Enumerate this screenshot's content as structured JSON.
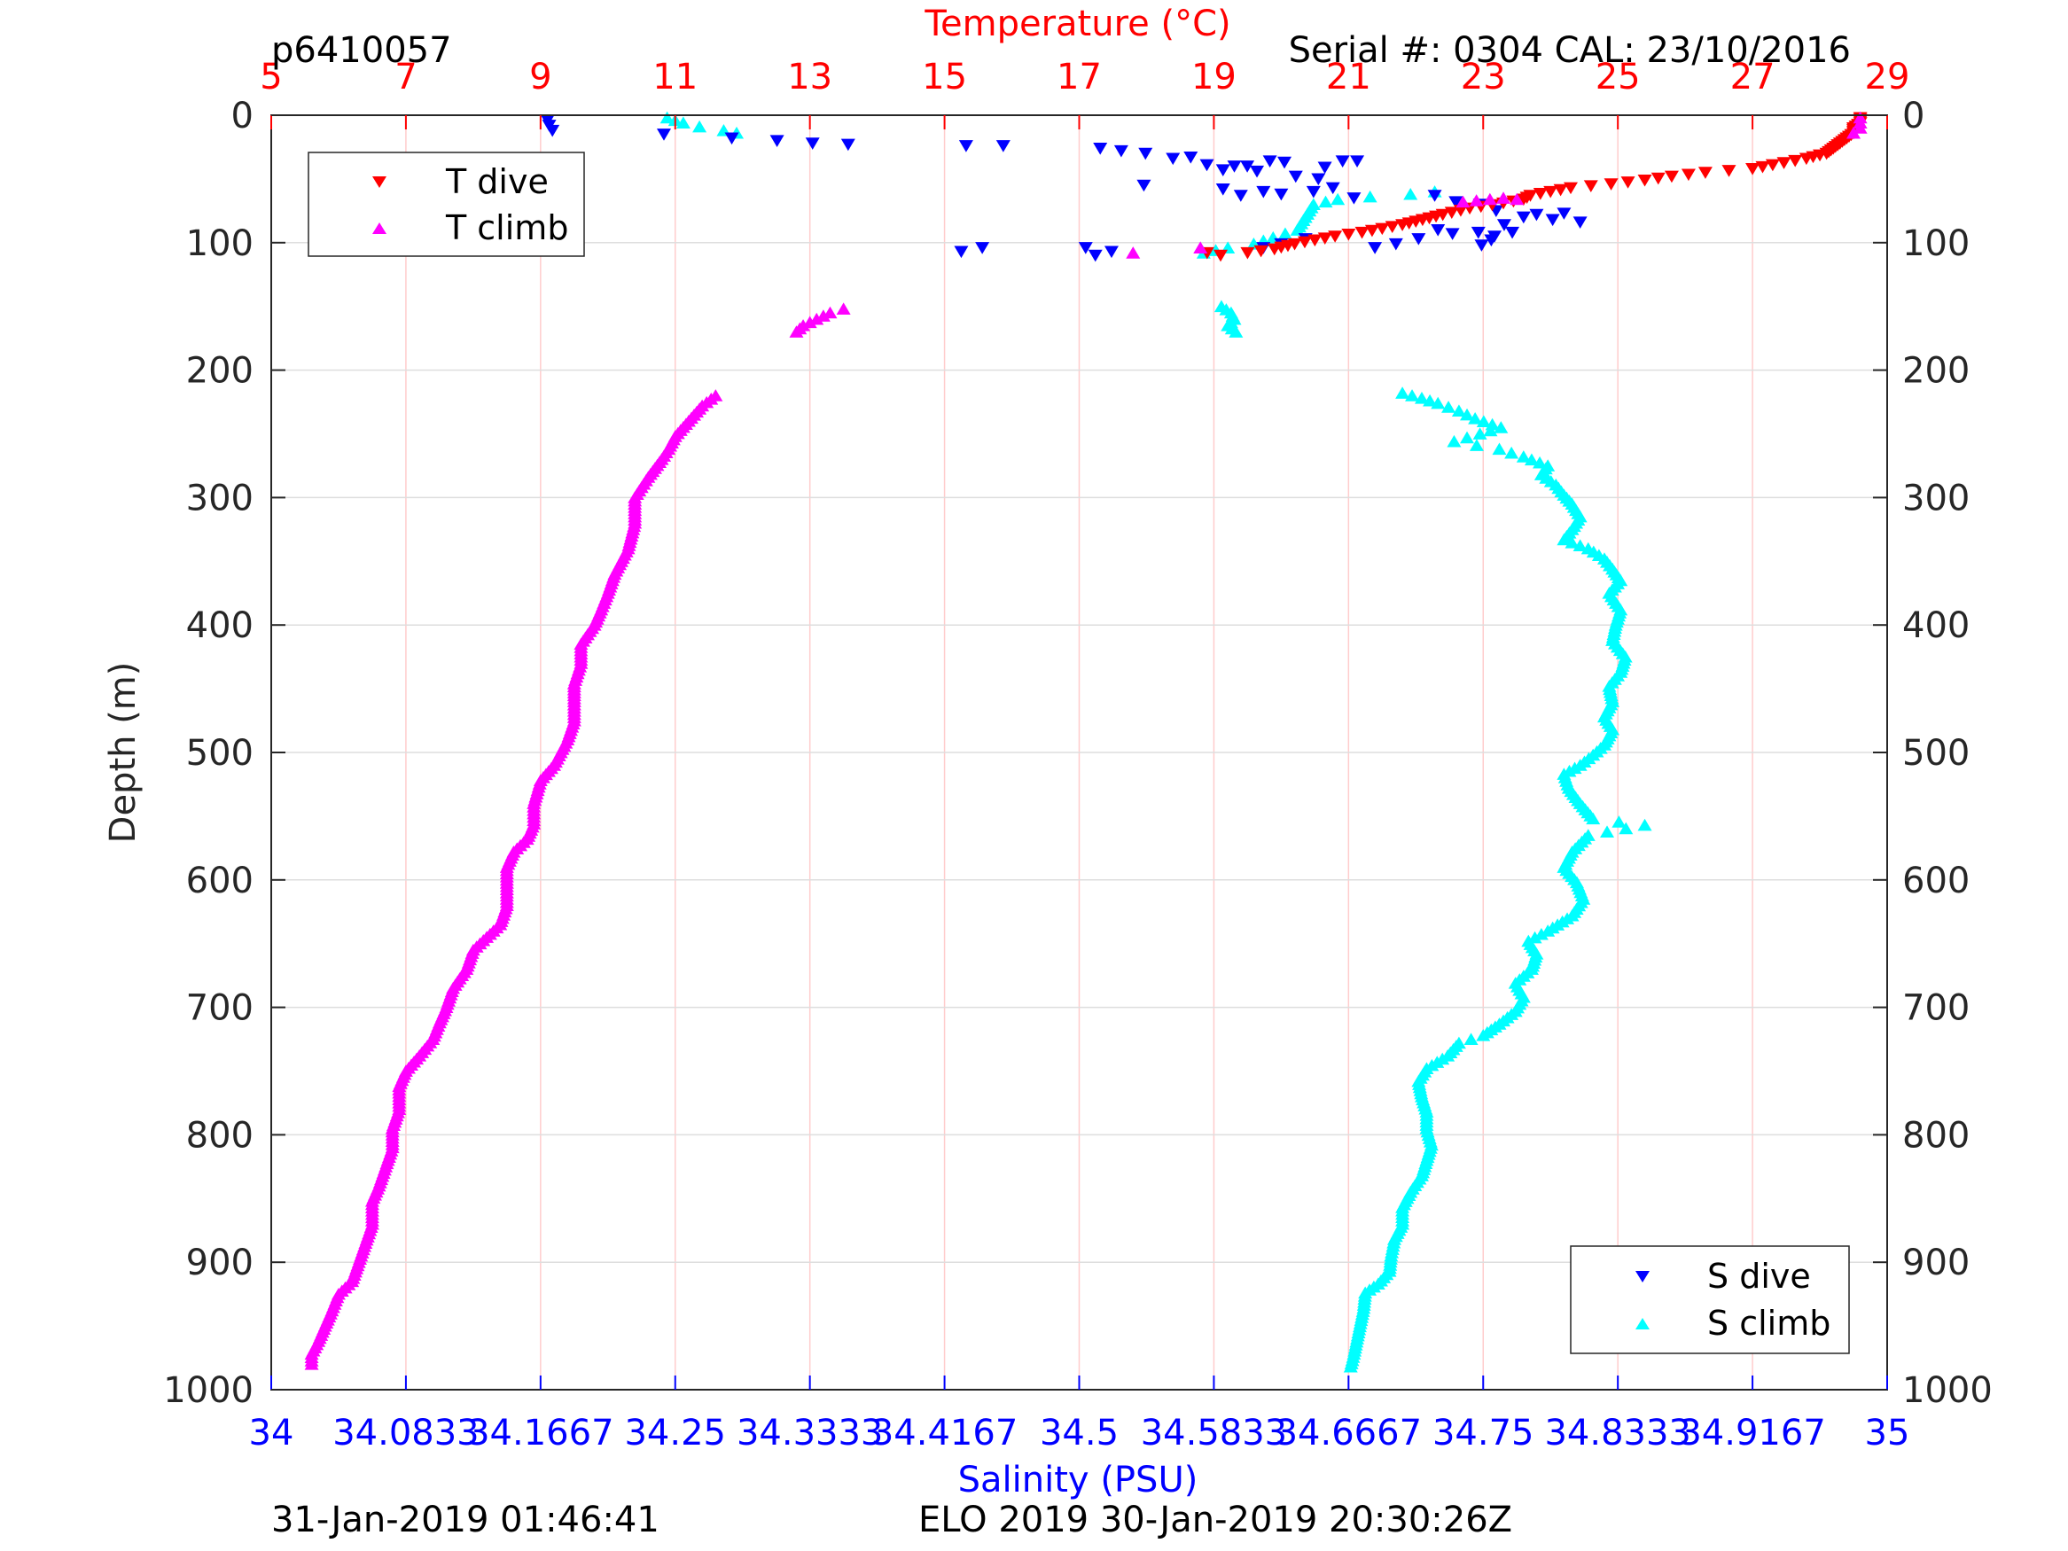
{
  "chart_data": {
    "type": "scatter",
    "profile_id": "p6410057",
    "serial_text": "Serial #: 0304  CAL: 23/10/2016",
    "footer_left": "31-Jan-2019 01:46:41",
    "footer_right": "ELO 2019 30-Jan-2019 20:30:26Z",
    "ylabel": "Depth (m)",
    "temp_axis_label": "Temperature (°C)",
    "sal_axis_label": "Salinity (PSU)",
    "ylim": [
      0,
      1000
    ],
    "y_reversed": true,
    "y_ticks": [
      "0",
      "100",
      "200",
      "300",
      "400",
      "500",
      "600",
      "700",
      "800",
      "900",
      "1000"
    ],
    "temp_lim": [
      5,
      29
    ],
    "temp_ticks": [
      "5",
      "7",
      "9",
      "11",
      "13",
      "15",
      "17",
      "19",
      "21",
      "23",
      "25",
      "27",
      "29"
    ],
    "sal_lim": [
      34,
      35
    ],
    "sal_ticks": [
      "34",
      "34.0833",
      "34.1667",
      "34.25",
      "34.3333",
      "34.4167",
      "34.5",
      "34.5833",
      "34.6667",
      "34.75",
      "34.8333",
      "34.9167",
      "35"
    ],
    "grid": true,
    "colors": {
      "temp_axis": "#ff0000",
      "sal_axis": "#0000ff",
      "t_dive": "#ff0000",
      "t_climb": "#ff00ff",
      "s_dive": "#0000ff",
      "s_climb": "#00ffff",
      "vgrid": "#ffcccc",
      "hgrid": "#dedede"
    },
    "legend_temp": {
      "placement": "top-left",
      "entries": [
        "T dive",
        "T climb"
      ]
    },
    "legend_sal": {
      "placement": "bottom-right",
      "entries": [
        "S dive",
        "S climb"
      ]
    },
    "series": [
      {
        "name": "T dive",
        "axis": "temperature",
        "marker": "triangle-down",
        "points": [
          [
            28.6,
            2
          ],
          [
            28.6,
            6
          ],
          [
            28.5,
            10
          ],
          [
            28.5,
            14
          ],
          [
            28.4,
            18
          ],
          [
            28.3,
            22
          ],
          [
            28.2,
            26
          ],
          [
            28.1,
            30
          ],
          [
            27.8,
            34
          ],
          [
            27.3,
            39
          ],
          [
            27.0,
            42
          ],
          [
            26.3,
            45
          ],
          [
            25.8,
            48
          ],
          [
            25.4,
            51
          ],
          [
            24.9,
            54
          ],
          [
            24.3,
            57
          ],
          [
            24.0,
            60
          ],
          [
            23.7,
            63
          ],
          [
            23.6,
            66
          ],
          [
            23.3,
            69
          ],
          [
            22.8,
            73
          ],
          [
            22.4,
            78
          ],
          [
            22.1,
            82
          ],
          [
            21.8,
            86
          ],
          [
            21.2,
            92
          ],
          [
            20.8,
            95
          ],
          [
            20.5,
            98
          ],
          [
            20.2,
            101
          ],
          [
            19.9,
            105
          ],
          [
            19.5,
            108
          ],
          [
            19.1,
            110
          ],
          [
            18.9,
            108
          ]
        ]
      },
      {
        "name": "T climb",
        "axis": "temperature",
        "marker": "triangle-up",
        "points": [
          [
            28.6,
            2
          ],
          [
            28.6,
            6
          ],
          [
            28.6,
            10
          ],
          [
            28.5,
            14
          ],
          [
            22.7,
            68
          ],
          [
            22.9,
            67
          ],
          [
            23.1,
            66
          ],
          [
            23.3,
            65
          ],
          [
            23.5,
            66
          ],
          [
            18.8,
            104
          ],
          [
            17.8,
            108
          ]
        ]
      },
      {
        "name": "S dive",
        "axis": "salinity",
        "marker": "triangle-down",
        "points": [
          [
            34.171,
            4
          ],
          [
            34.172,
            8
          ],
          [
            34.174,
            12
          ],
          [
            34.243,
            15
          ],
          [
            34.285,
            18
          ],
          [
            34.313,
            20
          ],
          [
            34.335,
            22
          ],
          [
            34.357,
            23
          ],
          [
            34.43,
            24
          ],
          [
            34.453,
            24
          ],
          [
            34.427,
            107
          ],
          [
            34.44,
            104
          ],
          [
            34.504,
            104
          ],
          [
            34.52,
            107
          ],
          [
            34.51,
            110
          ],
          [
            34.513,
            26
          ],
          [
            34.526,
            28
          ],
          [
            34.541,
            30
          ],
          [
            34.558,
            34
          ],
          [
            34.569,
            33
          ],
          [
            34.579,
            39
          ],
          [
            34.589,
            43
          ],
          [
            34.596,
            40
          ],
          [
            34.604,
            40
          ],
          [
            34.61,
            44
          ],
          [
            34.618,
            36
          ],
          [
            34.627,
            37
          ],
          [
            34.634,
            48
          ],
          [
            34.648,
            50
          ],
          [
            34.652,
            41
          ],
          [
            34.663,
            36
          ],
          [
            34.672,
            36
          ],
          [
            34.54,
            55
          ],
          [
            34.589,
            58
          ],
          [
            34.6,
            63
          ],
          [
            34.614,
            60
          ],
          [
            34.625,
            62
          ],
          [
            34.645,
            60
          ],
          [
            34.657,
            57
          ],
          [
            34.67,
            65
          ],
          [
            34.72,
            63
          ],
          [
            34.733,
            68
          ],
          [
            34.748,
            70
          ],
          [
            34.758,
            75
          ],
          [
            34.763,
            86
          ],
          [
            34.768,
            92
          ],
          [
            34.775,
            80
          ],
          [
            34.783,
            78
          ],
          [
            34.793,
            82
          ],
          [
            34.8,
            77
          ],
          [
            34.81,
            84
          ],
          [
            34.757,
            95
          ],
          [
            34.747,
            92
          ],
          [
            34.731,
            93
          ],
          [
            34.722,
            90
          ],
          [
            34.71,
            97
          ],
          [
            34.696,
            101
          ],
          [
            34.683,
            104
          ],
          [
            34.64,
            97
          ],
          [
            34.625,
            101
          ],
          [
            34.614,
            104
          ],
          [
            34.749,
            102
          ],
          [
            34.755,
            98
          ]
        ]
      },
      {
        "name": "S climb",
        "axis": "salinity",
        "marker": "triangle-up",
        "points": [
          [
            34.245,
            2
          ],
          [
            34.255,
            6
          ],
          [
            34.265,
            9
          ],
          [
            34.28,
            12
          ],
          [
            34.288,
            14
          ],
          [
            34.577,
            108
          ],
          [
            34.592,
            104
          ],
          [
            34.608,
            101
          ],
          [
            34.62,
            96
          ],
          [
            34.635,
            90
          ],
          [
            34.645,
            70
          ],
          [
            34.66,
            66
          ],
          [
            34.68,
            64
          ],
          [
            34.705,
            62
          ],
          [
            34.72,
            60
          ],
          [
            34.588,
            150
          ],
          [
            34.594,
            155
          ],
          [
            34.596,
            160
          ],
          [
            34.592,
            165
          ],
          [
            34.597,
            170
          ],
          [
            34.7,
            218
          ],
          [
            34.712,
            222
          ],
          [
            34.722,
            226
          ],
          [
            34.735,
            232
          ],
          [
            34.745,
            238
          ],
          [
            34.761,
            245
          ],
          [
            34.748,
            250
          ],
          [
            34.732,
            256
          ],
          [
            34.76,
            262
          ],
          [
            34.775,
            268
          ],
          [
            34.79,
            275
          ],
          [
            34.786,
            282
          ],
          [
            34.795,
            290
          ],
          [
            34.8,
            298
          ],
          [
            34.805,
            305
          ],
          [
            34.81,
            315
          ],
          [
            34.805,
            325
          ],
          [
            34.8,
            333
          ],
          [
            34.815,
            340
          ],
          [
            34.825,
            348
          ],
          [
            34.83,
            356
          ],
          [
            34.835,
            365
          ],
          [
            34.828,
            375
          ],
          [
            34.835,
            388
          ],
          [
            34.832,
            400
          ],
          [
            34.83,
            412
          ],
          [
            34.838,
            425
          ],
          [
            34.835,
            437
          ],
          [
            34.828,
            448
          ],
          [
            34.83,
            460
          ],
          [
            34.825,
            472
          ],
          [
            34.83,
            482
          ],
          [
            34.825,
            494
          ],
          [
            34.818,
            502
          ],
          [
            34.81,
            510
          ],
          [
            34.8,
            517
          ],
          [
            34.803,
            528
          ],
          [
            34.81,
            540
          ],
          [
            34.818,
            552
          ],
          [
            34.85,
            557
          ],
          [
            34.815,
            565
          ],
          [
            34.805,
            578
          ],
          [
            34.8,
            590
          ],
          [
            34.808,
            602
          ],
          [
            34.812,
            615
          ],
          [
            34.805,
            628
          ],
          [
            34.79,
            640
          ],
          [
            34.778,
            648
          ],
          [
            34.783,
            658
          ],
          [
            34.78,
            670
          ],
          [
            34.77,
            681
          ],
          [
            34.775,
            692
          ],
          [
            34.77,
            703
          ],
          [
            34.76,
            713
          ],
          [
            34.75,
            722
          ],
          [
            34.735,
            728
          ],
          [
            34.728,
            738
          ],
          [
            34.715,
            748
          ],
          [
            34.71,
            758
          ],
          [
            34.712,
            770
          ],
          [
            34.715,
            782
          ],
          [
            34.715,
            795
          ],
          [
            34.718,
            808
          ],
          [
            34.715,
            820
          ],
          [
            34.712,
            832
          ],
          [
            34.705,
            845
          ],
          [
            34.7,
            857
          ],
          [
            34.7,
            870
          ],
          [
            34.695,
            882
          ],
          [
            34.693,
            895
          ],
          [
            34.692,
            907
          ],
          [
            34.685,
            917
          ],
          [
            34.677,
            924
          ],
          [
            34.676,
            936
          ],
          [
            34.674,
            948
          ],
          [
            34.672,
            960
          ],
          [
            34.67,
            972
          ],
          [
            34.668,
            982
          ]
        ]
      }
    ],
    "t_climb_profile": [
      [
        13.5,
        152
      ],
      [
        13.3,
        155
      ],
      [
        13.1,
        160
      ],
      [
        12.9,
        165
      ],
      [
        12.8,
        170
      ],
      [
        11.6,
        220
      ],
      [
        11.4,
        228
      ],
      [
        11.2,
        240
      ],
      [
        11.0,
        252
      ],
      [
        10.9,
        262
      ],
      [
        10.8,
        270
      ],
      [
        10.6,
        284
      ],
      [
        10.4,
        300
      ],
      [
        10.4,
        320
      ],
      [
        10.3,
        340
      ],
      [
        10.1,
        360
      ],
      [
        10.0,
        375
      ],
      [
        9.9,
        388
      ],
      [
        9.8,
        400
      ],
      [
        9.6,
        415
      ],
      [
        9.6,
        430
      ],
      [
        9.5,
        446
      ],
      [
        9.5,
        460
      ],
      [
        9.5,
        475
      ],
      [
        9.4,
        490
      ],
      [
        9.3,
        500
      ],
      [
        9.2,
        510
      ],
      [
        9.0,
        522
      ],
      [
        8.9,
        540
      ],
      [
        8.9,
        556
      ],
      [
        8.8,
        568
      ],
      [
        8.6,
        578
      ],
      [
        8.5,
        590
      ],
      [
        8.5,
        605
      ],
      [
        8.5,
        620
      ],
      [
        8.4,
        635
      ],
      [
        8.2,
        645
      ],
      [
        8.0,
        655
      ],
      [
        7.9,
        670
      ],
      [
        7.7,
        685
      ],
      [
        7.6,
        700
      ],
      [
        7.5,
        712
      ],
      [
        7.4,
        725
      ],
      [
        7.2,
        738
      ],
      [
        7.0,
        750
      ],
      [
        6.9,
        762
      ],
      [
        6.9,
        780
      ],
      [
        6.8,
        795
      ],
      [
        6.8,
        810
      ],
      [
        6.7,
        825
      ],
      [
        6.6,
        840
      ],
      [
        6.5,
        852
      ],
      [
        6.5,
        870
      ],
      [
        6.4,
        885
      ],
      [
        6.3,
        900
      ],
      [
        6.2,
        915
      ],
      [
        6.0,
        925
      ],
      [
        5.9,
        938
      ],
      [
        5.8,
        950
      ],
      [
        5.7,
        962
      ],
      [
        5.6,
        972
      ],
      [
        5.6,
        980
      ]
    ]
  }
}
